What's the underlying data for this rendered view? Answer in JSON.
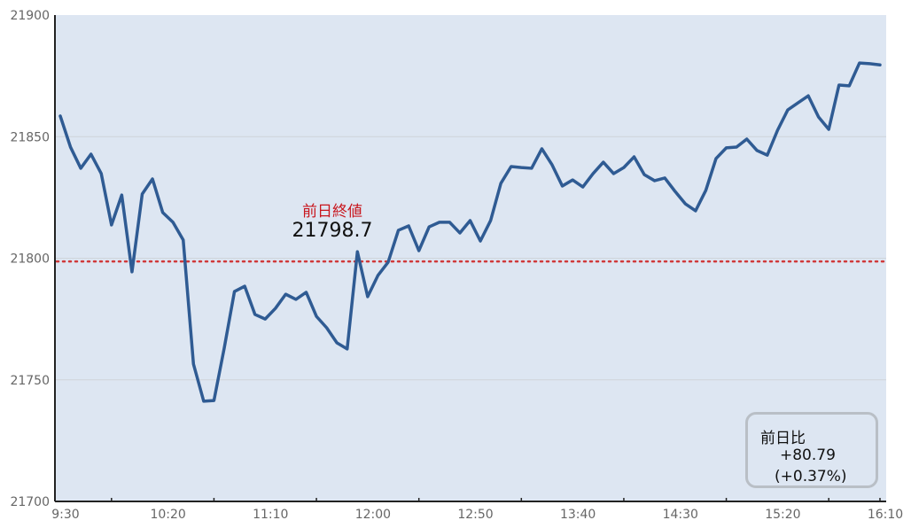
{
  "chart_data": {
    "type": "line",
    "title": "",
    "xlabel": "",
    "ylabel": "",
    "ylim": [
      21700,
      21900
    ],
    "yticks": [
      "21700",
      "21750",
      "21800",
      "21850",
      "21900"
    ],
    "xticks": [
      "9:30",
      "10:20",
      "11:10",
      "12:00",
      "12:50",
      "13:40",
      "14:30",
      "15:20",
      "16:10"
    ],
    "xrange": [
      "9:30",
      "16:10"
    ],
    "x": [
      "9:30",
      "9:35",
      "9:40",
      "9:45",
      "9:50",
      "9:55",
      "10:00",
      "10:05",
      "10:10",
      "10:15",
      "10:20",
      "10:25",
      "10:30",
      "10:35",
      "10:40",
      "10:45",
      "10:50",
      "10:55",
      "11:00",
      "11:05",
      "11:10",
      "11:15",
      "11:20",
      "11:25",
      "11:30",
      "11:35",
      "11:40",
      "11:45",
      "11:50",
      "11:55",
      "12:00",
      "12:05",
      "12:10",
      "12:15",
      "12:20",
      "12:25",
      "12:30",
      "12:35",
      "12:40",
      "12:45",
      "12:50",
      "12:55",
      "13:00",
      "13:05",
      "13:10",
      "13:15",
      "13:20",
      "13:25",
      "13:30",
      "13:35",
      "13:40",
      "13:45",
      "13:50",
      "13:55",
      "14:00",
      "14:05",
      "14:10",
      "14:15",
      "14:20",
      "14:25",
      "14:30",
      "14:35",
      "14:40",
      "14:45",
      "14:50",
      "14:55",
      "15:00",
      "15:05",
      "15:10",
      "15:15",
      "15:20",
      "15:25",
      "15:30",
      "15:35",
      "15:40",
      "15:45",
      "15:50",
      "15:55",
      "16:00",
      "16:05",
      "16:10"
    ],
    "series": [
      {
        "color": "#2f5b93",
        "values": [
          21858.5,
          21845.7,
          21837.0,
          21842.8,
          21834.8,
          21813.7,
          21826.0,
          21794.4,
          21826.4,
          21832.6,
          21818.8,
          21814.8,
          21807.5,
          21756.5,
          21741.2,
          21741.5,
          21763.0,
          21786.3,
          21788.5,
          21776.9,
          21775.0,
          21779.4,
          21785.2,
          21783.1,
          21786.0,
          21776.1,
          21771.4,
          21765.2,
          21762.7,
          21802.7,
          21784.2,
          21792.9,
          21798.4,
          21811.5,
          21813.3,
          21803.1,
          21812.9,
          21814.8,
          21814.8,
          21810.4,
          21815.5,
          21807.1,
          21815.5,
          21830.8,
          21837.7,
          21837.3,
          21837.0,
          21845.0,
          21838.4,
          21829.7,
          21832.2,
          21829.3,
          21834.8,
          21839.5,
          21834.8,
          21837.3,
          21841.7,
          21834.4,
          21831.9,
          21833.0,
          21827.5,
          21822.4,
          21819.5,
          21827.9,
          21841.0,
          21845.4,
          21845.7,
          21849.0,
          21844.3,
          21842.4,
          21852.6,
          21861.0,
          21863.9,
          21866.8,
          21858.1,
          21853.0,
          21871.2,
          21870.9,
          21880.3,
          21880.0,
          21879.5
        ]
      }
    ],
    "reference_line": {
      "value": 21798.7,
      "color": "#d0393a",
      "style": "dotted"
    },
    "grid": "horizontal",
    "background": "#dde6f2",
    "annotations": {
      "prev_close_label": "前日終値",
      "prev_close_value": "21798.7",
      "change_title": "前日比",
      "change_value": "+80.79",
      "change_pct": "(+0.37%)"
    }
  }
}
